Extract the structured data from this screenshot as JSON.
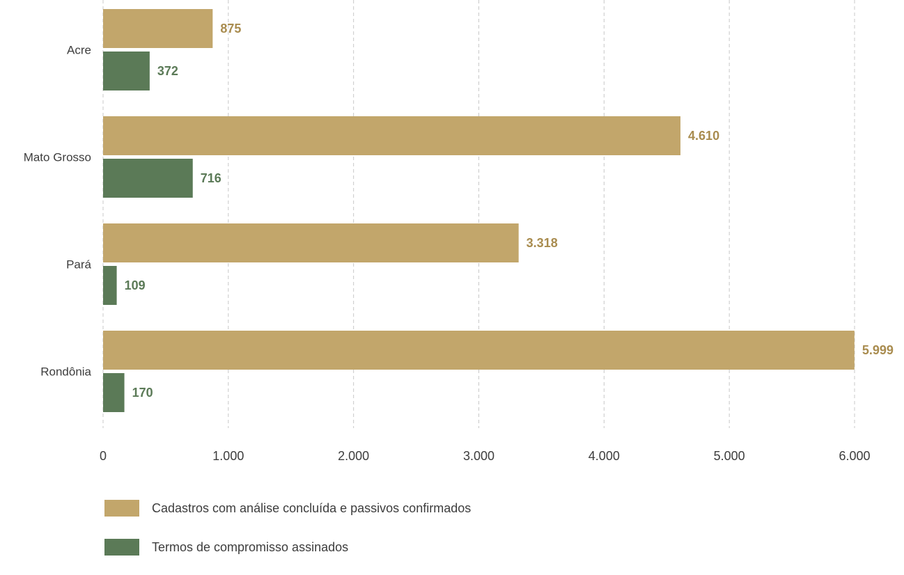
{
  "chart_data": {
    "type": "bar",
    "orientation": "horizontal",
    "categories": [
      "Acre",
      "Mato Grosso",
      "Pará",
      "Rondônia"
    ],
    "series": [
      {
        "name": "Cadastros com análise concluída e passivos confirmados",
        "color": "#c2a66b",
        "label_color": "#a98c4f",
        "values": [
          875,
          4610,
          3318,
          5999
        ],
        "labels": [
          "875",
          "4.610",
          "3.318",
          "5.999"
        ]
      },
      {
        "name": "Termos de compromisso assinados",
        "color": "#5b7a57",
        "label_color": "#5b7a57",
        "values": [
          372,
          716,
          109,
          170
        ],
        "labels": [
          "372",
          "716",
          "109",
          "170"
        ]
      }
    ],
    "xlim": [
      0,
      6000
    ],
    "xticks": [
      0,
      1000,
      2000,
      3000,
      4000,
      5000,
      6000
    ],
    "xtick_labels": [
      "0",
      "1.000",
      "2.000",
      "3.000",
      "4.000",
      "5.000",
      "6.000"
    ],
    "grid": true,
    "legend_position": "bottom-left"
  }
}
